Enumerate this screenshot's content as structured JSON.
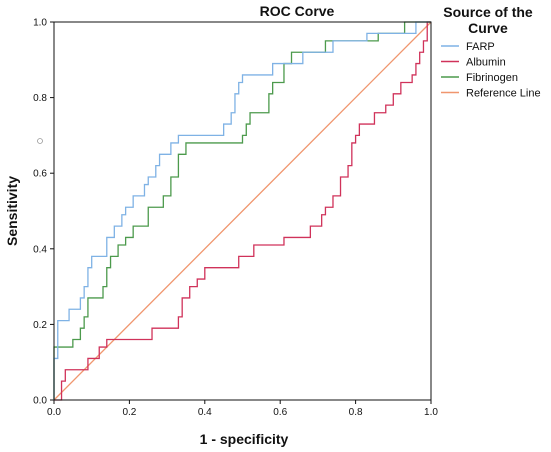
{
  "chart_data": {
    "type": "line",
    "title": "ROC Corve",
    "xlabel": "1 - specificity",
    "ylabel": "Sensitivity",
    "xlim": [
      0,
      1
    ],
    "ylim": [
      0,
      1
    ],
    "xticks": [
      "0.0",
      "0.2",
      "0.4",
      "0.6",
      "0.8",
      "1.0"
    ],
    "yticks": [
      "0.0",
      "0.2",
      "0.4",
      "0.6",
      "0.8",
      "1.0"
    ],
    "grid": false,
    "legend": {
      "title_line1": "Source of the",
      "title_line2": "Curve",
      "placement": "right"
    },
    "series": [
      {
        "name": "FARP",
        "color": "#7fb2e5",
        "points": [
          [
            0,
            0
          ],
          [
            0,
            0.11
          ],
          [
            0.01,
            0.11
          ],
          [
            0.01,
            0.21
          ],
          [
            0.04,
            0.21
          ],
          [
            0.04,
            0.24
          ],
          [
            0.07,
            0.24
          ],
          [
            0.07,
            0.27
          ],
          [
            0.08,
            0.27
          ],
          [
            0.08,
            0.3
          ],
          [
            0.09,
            0.3
          ],
          [
            0.09,
            0.35
          ],
          [
            0.1,
            0.35
          ],
          [
            0.1,
            0.38
          ],
          [
            0.14,
            0.38
          ],
          [
            0.14,
            0.43
          ],
          [
            0.16,
            0.43
          ],
          [
            0.16,
            0.46
          ],
          [
            0.18,
            0.46
          ],
          [
            0.18,
            0.49
          ],
          [
            0.19,
            0.49
          ],
          [
            0.19,
            0.51
          ],
          [
            0.21,
            0.51
          ],
          [
            0.21,
            0.54
          ],
          [
            0.24,
            0.54
          ],
          [
            0.24,
            0.57
          ],
          [
            0.25,
            0.57
          ],
          [
            0.25,
            0.59
          ],
          [
            0.27,
            0.59
          ],
          [
            0.27,
            0.62
          ],
          [
            0.28,
            0.62
          ],
          [
            0.28,
            0.65
          ],
          [
            0.31,
            0.65
          ],
          [
            0.31,
            0.68
          ],
          [
            0.33,
            0.68
          ],
          [
            0.33,
            0.7
          ],
          [
            0.45,
            0.7
          ],
          [
            0.45,
            0.73
          ],
          [
            0.47,
            0.73
          ],
          [
            0.47,
            0.76
          ],
          [
            0.48,
            0.76
          ],
          [
            0.48,
            0.81
          ],
          [
            0.49,
            0.81
          ],
          [
            0.49,
            0.84
          ],
          [
            0.5,
            0.84
          ],
          [
            0.5,
            0.86
          ],
          [
            0.58,
            0.86
          ],
          [
            0.58,
            0.89
          ],
          [
            0.66,
            0.89
          ],
          [
            0.66,
            0.92
          ],
          [
            0.74,
            0.92
          ],
          [
            0.74,
            0.95
          ],
          [
            0.83,
            0.95
          ],
          [
            0.83,
            0.97
          ],
          [
            0.96,
            0.97
          ],
          [
            0.96,
            1
          ],
          [
            1,
            1
          ]
        ]
      },
      {
        "name": "Albumin",
        "color": "#d0325a",
        "points": [
          [
            0,
            0
          ],
          [
            0.02,
            0
          ],
          [
            0.02,
            0.05
          ],
          [
            0.03,
            0.05
          ],
          [
            0.03,
            0.08
          ],
          [
            0.09,
            0.08
          ],
          [
            0.09,
            0.11
          ],
          [
            0.12,
            0.11
          ],
          [
            0.12,
            0.14
          ],
          [
            0.14,
            0.14
          ],
          [
            0.14,
            0.16
          ],
          [
            0.26,
            0.16
          ],
          [
            0.26,
            0.19
          ],
          [
            0.33,
            0.19
          ],
          [
            0.33,
            0.22
          ],
          [
            0.34,
            0.22
          ],
          [
            0.34,
            0.27
          ],
          [
            0.36,
            0.27
          ],
          [
            0.36,
            0.3
          ],
          [
            0.38,
            0.3
          ],
          [
            0.38,
            0.32
          ],
          [
            0.4,
            0.32
          ],
          [
            0.4,
            0.35
          ],
          [
            0.49,
            0.35
          ],
          [
            0.49,
            0.38
          ],
          [
            0.53,
            0.38
          ],
          [
            0.53,
            0.41
          ],
          [
            0.61,
            0.41
          ],
          [
            0.61,
            0.43
          ],
          [
            0.68,
            0.43
          ],
          [
            0.68,
            0.46
          ],
          [
            0.71,
            0.46
          ],
          [
            0.71,
            0.49
          ],
          [
            0.72,
            0.49
          ],
          [
            0.72,
            0.51
          ],
          [
            0.74,
            0.51
          ],
          [
            0.74,
            0.54
          ],
          [
            0.76,
            0.54
          ],
          [
            0.76,
            0.59
          ],
          [
            0.78,
            0.59
          ],
          [
            0.78,
            0.62
          ],
          [
            0.79,
            0.62
          ],
          [
            0.79,
            0.68
          ],
          [
            0.8,
            0.68
          ],
          [
            0.8,
            0.7
          ],
          [
            0.81,
            0.7
          ],
          [
            0.81,
            0.73
          ],
          [
            0.85,
            0.73
          ],
          [
            0.85,
            0.76
          ],
          [
            0.88,
            0.76
          ],
          [
            0.88,
            0.78
          ],
          [
            0.9,
            0.78
          ],
          [
            0.9,
            0.81
          ],
          [
            0.92,
            0.81
          ],
          [
            0.92,
            0.84
          ],
          [
            0.95,
            0.84
          ],
          [
            0.95,
            0.86
          ],
          [
            0.96,
            0.86
          ],
          [
            0.96,
            0.89
          ],
          [
            0.97,
            0.89
          ],
          [
            0.97,
            0.92
          ],
          [
            0.98,
            0.92
          ],
          [
            0.98,
            0.95
          ],
          [
            0.99,
            0.95
          ],
          [
            0.99,
            1
          ],
          [
            1,
            1
          ]
        ]
      },
      {
        "name": "Fibrinogen",
        "color": "#4c9a4c",
        "points": [
          [
            0,
            0
          ],
          [
            0,
            0.14
          ],
          [
            0.05,
            0.14
          ],
          [
            0.05,
            0.16
          ],
          [
            0.07,
            0.16
          ],
          [
            0.07,
            0.19
          ],
          [
            0.08,
            0.19
          ],
          [
            0.08,
            0.22
          ],
          [
            0.09,
            0.22
          ],
          [
            0.09,
            0.27
          ],
          [
            0.13,
            0.27
          ],
          [
            0.13,
            0.3
          ],
          [
            0.14,
            0.3
          ],
          [
            0.14,
            0.35
          ],
          [
            0.15,
            0.35
          ],
          [
            0.15,
            0.38
          ],
          [
            0.17,
            0.38
          ],
          [
            0.17,
            0.41
          ],
          [
            0.19,
            0.41
          ],
          [
            0.19,
            0.43
          ],
          [
            0.21,
            0.43
          ],
          [
            0.21,
            0.46
          ],
          [
            0.25,
            0.46
          ],
          [
            0.25,
            0.51
          ],
          [
            0.29,
            0.51
          ],
          [
            0.29,
            0.54
          ],
          [
            0.31,
            0.54
          ],
          [
            0.31,
            0.59
          ],
          [
            0.33,
            0.59
          ],
          [
            0.33,
            0.65
          ],
          [
            0.35,
            0.65
          ],
          [
            0.35,
            0.68
          ],
          [
            0.5,
            0.68
          ],
          [
            0.5,
            0.7
          ],
          [
            0.51,
            0.7
          ],
          [
            0.51,
            0.73
          ],
          [
            0.52,
            0.73
          ],
          [
            0.52,
            0.76
          ],
          [
            0.57,
            0.76
          ],
          [
            0.57,
            0.81
          ],
          [
            0.58,
            0.81
          ],
          [
            0.58,
            0.84
          ],
          [
            0.61,
            0.84
          ],
          [
            0.61,
            0.89
          ],
          [
            0.63,
            0.89
          ],
          [
            0.63,
            0.92
          ],
          [
            0.72,
            0.92
          ],
          [
            0.72,
            0.95
          ],
          [
            0.86,
            0.95
          ],
          [
            0.86,
            0.97
          ],
          [
            0.93,
            0.97
          ],
          [
            0.93,
            1
          ],
          [
            1,
            1
          ]
        ]
      },
      {
        "name": "Reference Line",
        "color": "#f0966e",
        "points": [
          [
            0,
            0
          ],
          [
            1,
            1
          ]
        ]
      }
    ]
  }
}
